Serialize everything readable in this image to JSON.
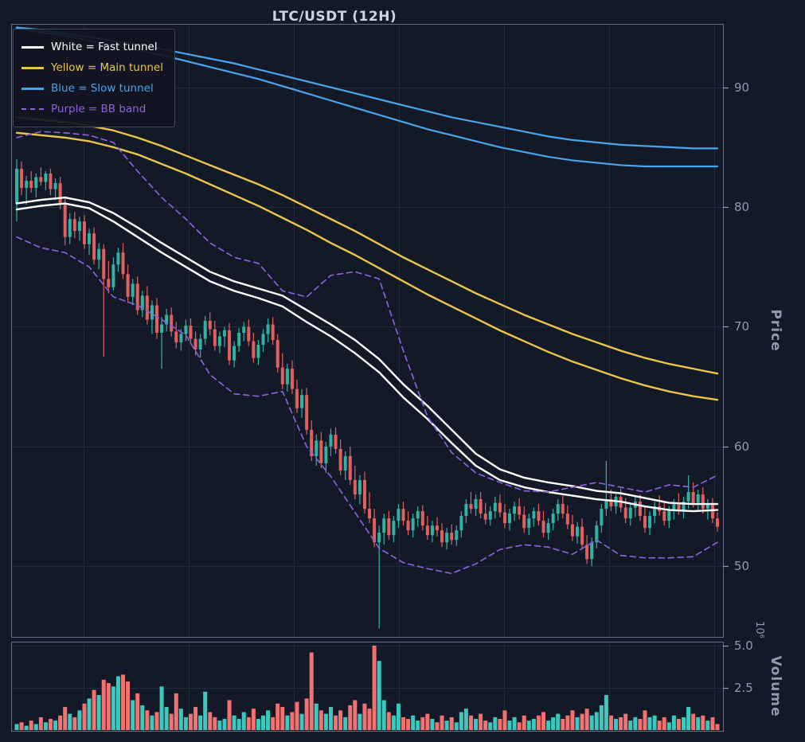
{
  "chart_data": {
    "type": "candlestick",
    "title": "LTC/USDT (12H)",
    "legend": {
      "position": "upper left",
      "items": [
        {
          "label": "White = Fast tunnel",
          "color": "#ffffff",
          "dash": false
        },
        {
          "label": "Yellow = Main tunnel",
          "color": "#e9c54b",
          "dash": false
        },
        {
          "label": "Blue = Slow tunnel",
          "color": "#4ba3e8",
          "dash": false
        },
        {
          "label": "Purple = BB band",
          "color": "#8a63dd",
          "dash": true
        }
      ]
    },
    "axes": {
      "price": {
        "label": "Price",
        "side": "right",
        "ticks": [
          "90",
          "80",
          "70",
          "60",
          "50"
        ],
        "tick_values": [
          90,
          80,
          70,
          60,
          50
        ],
        "ylim": [
          44.1,
          95.3
        ]
      },
      "volume": {
        "label": "Volume",
        "side": "right",
        "offset_text": "10⁶",
        "ticks": [
          "5.0",
          "2.5"
        ],
        "tick_values": [
          5.0,
          2.5
        ],
        "ylim": [
          0,
          5.23
        ]
      }
    },
    "grid": {
      "vertical_fractions": [
        0.102,
        0.249,
        0.397,
        0.545,
        0.692,
        0.84,
        0.988
      ],
      "on": true
    },
    "colors": {
      "background": "#131927",
      "grid": "#222b3e",
      "spine": "#646e84",
      "tick_label": "#9099ad",
      "title": "#cdd3e0",
      "candle_up": "#30b3a2",
      "candle_down": "#e25f5f",
      "volume_up": "#3cc9bd",
      "volume_down": "#f47171"
    },
    "candles": [
      [
        80.3,
        84.0,
        78.8,
        83.2,
        0.4
      ],
      [
        83.2,
        83.8,
        81.0,
        81.6,
        0.5
      ],
      [
        81.6,
        82.6,
        80.2,
        82.2,
        0.3
      ],
      [
        82.2,
        83.0,
        81.2,
        81.6,
        0.6
      ],
      [
        81.6,
        82.8,
        80.8,
        82.5,
        0.4
      ],
      [
        82.5,
        83.3,
        81.8,
        82.1,
        0.8
      ],
      [
        82.1,
        83.0,
        81.4,
        82.8,
        0.5
      ],
      [
        82.8,
        83.2,
        81.0,
        81.5,
        0.7
      ],
      [
        81.5,
        82.4,
        80.6,
        82.0,
        0.6
      ],
      [
        82.0,
        82.5,
        79.8,
        80.3,
        0.9
      ],
      [
        80.3,
        80.9,
        76.8,
        77.5,
        1.4
      ],
      [
        77.5,
        79.5,
        76.9,
        79.0,
        1.0
      ],
      [
        79.0,
        79.6,
        77.4,
        78.0,
        0.8
      ],
      [
        78.0,
        79.2,
        77.2,
        78.8,
        1.2
      ],
      [
        78.8,
        79.3,
        76.5,
        76.9,
        1.6
      ],
      [
        76.9,
        78.2,
        76.0,
        77.8,
        1.9
      ],
      [
        77.8,
        78.3,
        75.2,
        75.6,
        2.4
      ],
      [
        75.6,
        77.0,
        74.8,
        76.5,
        2.1
      ],
      [
        76.5,
        76.9,
        67.5,
        74.0,
        3.0
      ],
      [
        74.0,
        75.5,
        72.8,
        73.3,
        2.8
      ],
      [
        73.3,
        75.8,
        73.0,
        75.2,
        2.6
      ],
      [
        75.2,
        76.6,
        74.6,
        76.2,
        3.2
      ],
      [
        76.2,
        77.0,
        74.0,
        74.4,
        3.3
      ],
      [
        74.4,
        75.2,
        72.0,
        72.5,
        2.9
      ],
      [
        72.5,
        74.0,
        71.8,
        73.6,
        1.8
      ],
      [
        73.6,
        74.2,
        71.0,
        71.4,
        2.2
      ],
      [
        71.4,
        73.0,
        70.8,
        72.6,
        1.5
      ],
      [
        72.6,
        73.4,
        70.2,
        70.6,
        1.2
      ],
      [
        70.6,
        72.2,
        69.4,
        71.8,
        0.9
      ],
      [
        71.8,
        72.4,
        69.0,
        69.5,
        1.1
      ],
      [
        69.5,
        70.8,
        66.5,
        70.2,
        2.6
      ],
      [
        70.2,
        71.5,
        69.6,
        71.0,
        1.4
      ],
      [
        71.0,
        71.6,
        69.2,
        69.6,
        1.0
      ],
      [
        69.6,
        70.4,
        68.2,
        68.7,
        2.2
      ],
      [
        68.7,
        69.8,
        68.0,
        69.4,
        1.3
      ],
      [
        69.4,
        70.6,
        68.8,
        70.1,
        0.8
      ],
      [
        70.1,
        70.7,
        68.6,
        69.0,
        1.0
      ],
      [
        69.0,
        69.6,
        67.6,
        68.1,
        1.4
      ],
      [
        68.1,
        69.4,
        67.4,
        69.0,
        0.9
      ],
      [
        69.0,
        70.9,
        68.5,
        70.5,
        2.3
      ],
      [
        70.5,
        71.2,
        69.3,
        69.8,
        1.1
      ],
      [
        69.8,
        70.5,
        68.0,
        68.4,
        0.8
      ],
      [
        68.4,
        69.6,
        67.8,
        69.2,
        0.6
      ],
      [
        69.2,
        70.0,
        68.3,
        69.7,
        0.7
      ],
      [
        69.7,
        70.3,
        66.8,
        67.2,
        1.8
      ],
      [
        67.2,
        68.8,
        66.6,
        68.4,
        0.9
      ],
      [
        68.4,
        69.9,
        67.9,
        69.5,
        0.7
      ],
      [
        69.5,
        70.4,
        68.8,
        70.0,
        1.1
      ],
      [
        70.0,
        70.6,
        68.4,
        68.8,
        0.8
      ],
      [
        68.8,
        69.5,
        67.0,
        67.4,
        1.3
      ],
      [
        67.4,
        68.9,
        66.8,
        68.5,
        0.7
      ],
      [
        68.5,
        69.8,
        67.9,
        69.4,
        0.9
      ],
      [
        69.4,
        70.7,
        68.7,
        70.2,
        1.2
      ],
      [
        70.2,
        70.8,
        68.5,
        68.9,
        0.8
      ],
      [
        68.9,
        69.4,
        66.2,
        66.6,
        1.6
      ],
      [
        66.6,
        67.8,
        64.8,
        65.2,
        1.4
      ],
      [
        65.2,
        66.9,
        64.6,
        66.5,
        0.9
      ],
      [
        66.5,
        67.2,
        64.4,
        64.8,
        1.1
      ],
      [
        64.8,
        65.6,
        62.8,
        63.2,
        1.7
      ],
      [
        63.2,
        64.8,
        62.4,
        64.3,
        1.0
      ],
      [
        64.3,
        64.9,
        61.0,
        61.4,
        1.9
      ],
      [
        61.4,
        62.2,
        58.8,
        59.2,
        4.6
      ],
      [
        59.2,
        61.0,
        58.4,
        60.5,
        1.6
      ],
      [
        60.5,
        61.2,
        58.2,
        58.6,
        1.2
      ],
      [
        58.6,
        60.4,
        57.8,
        60.0,
        1.0
      ],
      [
        60.0,
        61.5,
        59.2,
        61.0,
        1.4
      ],
      [
        61.0,
        61.6,
        59.4,
        59.8,
        0.9
      ],
      [
        59.8,
        60.6,
        57.6,
        58.0,
        1.2
      ],
      [
        58.0,
        59.6,
        57.2,
        59.2,
        0.8
      ],
      [
        59.2,
        60.0,
        56.8,
        57.2,
        1.5
      ],
      [
        57.2,
        58.4,
        55.6,
        56.0,
        1.8
      ],
      [
        56.0,
        57.6,
        55.2,
        57.2,
        1.0
      ],
      [
        57.2,
        57.9,
        54.4,
        54.8,
        1.6
      ],
      [
        54.8,
        56.2,
        53.6,
        54.0,
        1.3
      ],
      [
        54.0,
        54.8,
        51.6,
        52.0,
        5.0
      ],
      [
        52.0,
        53.4,
        44.8,
        52.8,
        4.1
      ],
      [
        52.8,
        54.4,
        51.8,
        54.0,
        1.8
      ],
      [
        54.0,
        54.6,
        52.2,
        52.6,
        1.1
      ],
      [
        52.6,
        54.2,
        52.0,
        53.8,
        0.9
      ],
      [
        53.8,
        55.2,
        53.2,
        54.8,
        1.6
      ],
      [
        54.8,
        55.4,
        53.4,
        53.8,
        0.8
      ],
      [
        53.8,
        54.6,
        52.6,
        53.0,
        0.7
      ],
      [
        53.0,
        54.4,
        52.4,
        54.0,
        0.9
      ],
      [
        54.0,
        55.0,
        53.3,
        54.6,
        0.6
      ],
      [
        54.6,
        55.1,
        53.0,
        53.4,
        0.8
      ],
      [
        53.4,
        54.2,
        52.2,
        52.6,
        1.0
      ],
      [
        52.6,
        53.8,
        52.0,
        53.4,
        0.7
      ],
      [
        53.4,
        54.1,
        52.5,
        53.0,
        0.5
      ],
      [
        53.0,
        53.6,
        51.6,
        52.0,
        0.9
      ],
      [
        52.0,
        53.2,
        51.4,
        52.8,
        0.6
      ],
      [
        52.8,
        53.5,
        51.8,
        52.2,
        0.8
      ],
      [
        52.2,
        53.4,
        51.7,
        53.0,
        0.5
      ],
      [
        53.0,
        54.6,
        52.4,
        54.2,
        1.1
      ],
      [
        54.2,
        55.6,
        53.6,
        55.2,
        1.3
      ],
      [
        55.2,
        56.2,
        54.4,
        54.8,
        0.9
      ],
      [
        54.8,
        56.0,
        54.2,
        55.6,
        0.7
      ],
      [
        55.6,
        56.2,
        54.0,
        54.4,
        1.0
      ],
      [
        54.4,
        55.3,
        53.5,
        53.9,
        0.6
      ],
      [
        53.9,
        55.0,
        53.4,
        54.6,
        0.5
      ],
      [
        54.6,
        55.8,
        54.0,
        55.3,
        0.8
      ],
      [
        55.3,
        56.0,
        54.1,
        54.5,
        0.7
      ],
      [
        54.5,
        55.2,
        53.2,
        53.6,
        1.2
      ],
      [
        53.6,
        54.8,
        53.0,
        54.4,
        0.6
      ],
      [
        54.4,
        55.4,
        53.8,
        55.0,
        0.8
      ],
      [
        55.0,
        55.7,
        53.9,
        54.3,
        0.5
      ],
      [
        54.3,
        55.0,
        52.8,
        53.2,
        0.9
      ],
      [
        53.2,
        54.4,
        52.6,
        54.0,
        0.6
      ],
      [
        54.0,
        54.9,
        53.3,
        54.6,
        0.7
      ],
      [
        54.6,
        55.2,
        53.4,
        53.8,
        0.9
      ],
      [
        53.8,
        54.6,
        52.4,
        52.8,
        1.1
      ],
      [
        52.8,
        54.0,
        52.2,
        53.6,
        0.6
      ],
      [
        53.6,
        54.8,
        53.0,
        54.4,
        0.8
      ],
      [
        54.4,
        55.6,
        53.8,
        55.2,
        1.0
      ],
      [
        55.2,
        55.9,
        54.0,
        54.4,
        0.7
      ],
      [
        54.4,
        55.1,
        53.1,
        53.5,
        0.9
      ],
      [
        53.5,
        54.3,
        52.1,
        52.5,
        1.2
      ],
      [
        52.5,
        53.7,
        51.9,
        53.3,
        0.8
      ],
      [
        53.3,
        54.0,
        51.4,
        51.8,
        1.0
      ],
      [
        51.8,
        52.6,
        50.2,
        50.6,
        1.3
      ],
      [
        50.6,
        52.4,
        50.0,
        52.0,
        0.9
      ],
      [
        52.0,
        53.8,
        51.5,
        53.4,
        1.1
      ],
      [
        53.4,
        55.2,
        52.8,
        54.8,
        1.5
      ],
      [
        54.8,
        58.8,
        54.2,
        55.6,
        2.1
      ],
      [
        55.6,
        56.4,
        54.6,
        55.0,
        0.9
      ],
      [
        55.0,
        56.2,
        54.4,
        55.8,
        0.7
      ],
      [
        55.8,
        56.5,
        54.5,
        54.9,
        0.8
      ],
      [
        54.9,
        55.7,
        53.6,
        54.0,
        1.0
      ],
      [
        54.0,
        55.3,
        53.4,
        54.9,
        0.6
      ],
      [
        54.9,
        55.8,
        54.1,
        55.4,
        0.8
      ],
      [
        55.4,
        56.0,
        53.8,
        54.2,
        0.7
      ],
      [
        54.2,
        55.0,
        52.8,
        53.2,
        1.2
      ],
      [
        53.2,
        54.6,
        52.6,
        54.2,
        0.8
      ],
      [
        54.2,
        55.4,
        53.6,
        55.0,
        0.9
      ],
      [
        55.0,
        55.9,
        54.2,
        54.6,
        0.6
      ],
      [
        54.6,
        55.4,
        53.4,
        53.8,
        0.8
      ],
      [
        53.8,
        55.0,
        53.2,
        54.6,
        0.5
      ],
      [
        54.6,
        55.6,
        53.9,
        55.2,
        0.9
      ],
      [
        55.2,
        56.1,
        54.3,
        54.7,
        0.7
      ],
      [
        54.7,
        55.8,
        54.0,
        55.4,
        0.8
      ],
      [
        55.4,
        57.6,
        54.8,
        56.2,
        1.4
      ],
      [
        56.2,
        57.0,
        54.9,
        55.3,
        1.0
      ],
      [
        55.3,
        56.4,
        54.6,
        56.0,
        0.8
      ],
      [
        56.0,
        56.6,
        54.4,
        54.8,
        0.9
      ],
      [
        54.8,
        55.6,
        53.9,
        55.2,
        0.6
      ],
      [
        55.2,
        55.7,
        53.6,
        54.0,
        0.8
      ],
      [
        54.0,
        54.5,
        52.9,
        53.3,
        0.4
      ]
    ],
    "overlays": [
      {
        "name": "fast-tunnel-upper",
        "color": "#ffffff",
        "width": 2.4,
        "dash": null,
        "step": 5,
        "values": [
          80.3,
          80.6,
          80.8,
          80.4,
          79.5,
          78.3,
          77.0,
          75.8,
          74.6,
          73.8,
          73.2,
          72.6,
          71.4,
          70.2,
          68.9,
          67.3,
          65.2,
          63.4,
          61.4,
          59.4,
          58.1,
          57.4,
          57.0,
          56.7,
          56.3,
          56.1,
          55.7,
          55.3,
          55.2,
          55.2
        ]
      },
      {
        "name": "fast-tunnel-lower",
        "color": "#ffffff",
        "width": 2.4,
        "dash": null,
        "step": 5,
        "values": [
          79.8,
          80.1,
          80.3,
          79.9,
          78.8,
          77.5,
          76.2,
          75.0,
          73.8,
          73.0,
          72.4,
          71.7,
          70.4,
          69.2,
          67.8,
          66.2,
          64.1,
          62.3,
          60.3,
          58.4,
          57.2,
          56.6,
          56.2,
          55.9,
          55.6,
          55.4,
          55.0,
          54.7,
          54.6,
          54.7
        ]
      },
      {
        "name": "main-tunnel-upper",
        "color": "#e9c54b",
        "width": 2.4,
        "dash": null,
        "step": 5,
        "values": [
          87.5,
          87.3,
          87.1,
          86.8,
          86.4,
          85.8,
          85.1,
          84.3,
          83.5,
          82.7,
          81.9,
          81.0,
          80.0,
          79.0,
          78.0,
          76.9,
          75.8,
          74.8,
          73.8,
          72.8,
          71.9,
          71.0,
          70.2,
          69.4,
          68.7,
          68.0,
          67.4,
          66.9,
          66.5,
          66.1
        ]
      },
      {
        "name": "main-tunnel-lower",
        "color": "#e9c54b",
        "width": 2.4,
        "dash": null,
        "step": 5,
        "values": [
          86.2,
          86.0,
          85.8,
          85.5,
          85.0,
          84.4,
          83.6,
          82.8,
          81.9,
          81.0,
          80.1,
          79.1,
          78.1,
          77.0,
          76.0,
          74.9,
          73.8,
          72.7,
          71.7,
          70.7,
          69.7,
          68.8,
          67.9,
          67.1,
          66.4,
          65.7,
          65.1,
          64.6,
          64.2,
          63.9
        ]
      },
      {
        "name": "slow-tunnel-upper",
        "color": "#4ba3e8",
        "width": 2.2,
        "dash": null,
        "step": 5,
        "values": [
          95.0,
          94.8,
          94.5,
          94.2,
          93.9,
          93.6,
          93.2,
          92.8,
          92.4,
          92.0,
          91.5,
          91.0,
          90.5,
          90.0,
          89.5,
          89.0,
          88.5,
          88.0,
          87.5,
          87.1,
          86.7,
          86.3,
          85.9,
          85.6,
          85.4,
          85.2,
          85.1,
          85.0,
          84.9,
          84.9
        ]
      },
      {
        "name": "slow-tunnel-lower",
        "color": "#4ba3e8",
        "width": 2.2,
        "dash": null,
        "step": 5,
        "values": [
          94.9,
          94.6,
          94.3,
          93.9,
          93.5,
          93.1,
          92.7,
          92.2,
          91.7,
          91.2,
          90.7,
          90.1,
          89.5,
          88.9,
          88.3,
          87.7,
          87.1,
          86.5,
          86.0,
          85.5,
          85.0,
          84.6,
          84.2,
          83.9,
          83.7,
          83.5,
          83.4,
          83.4,
          83.4,
          83.4
        ]
      },
      {
        "name": "bb-band-upper",
        "color": "#8561d8",
        "width": 1.7,
        "dash": [
          7,
          5
        ],
        "step": 5,
        "values": [
          85.8,
          86.3,
          86.2,
          86.0,
          85.4,
          83.0,
          80.8,
          79.0,
          77.0,
          75.8,
          75.3,
          73.0,
          72.5,
          74.3,
          74.6,
          74.0,
          68.0,
          62.5,
          59.5,
          57.8,
          57.0,
          56.3,
          56.2,
          56.6,
          57.0,
          56.6,
          56.2,
          56.8,
          56.6,
          57.6
        ]
      },
      {
        "name": "bb-band-lower",
        "color": "#8561d8",
        "width": 1.7,
        "dash": [
          7,
          5
        ],
        "step": 5,
        "values": [
          77.5,
          76.6,
          76.2,
          75.0,
          72.5,
          71.8,
          70.6,
          69.3,
          66.0,
          64.4,
          64.2,
          64.6,
          60.0,
          57.5,
          54.5,
          51.5,
          50.3,
          49.8,
          49.4,
          50.2,
          51.4,
          51.8,
          51.6,
          51.0,
          52.2,
          50.9,
          50.7,
          50.7,
          50.8,
          52.0
        ]
      }
    ]
  }
}
